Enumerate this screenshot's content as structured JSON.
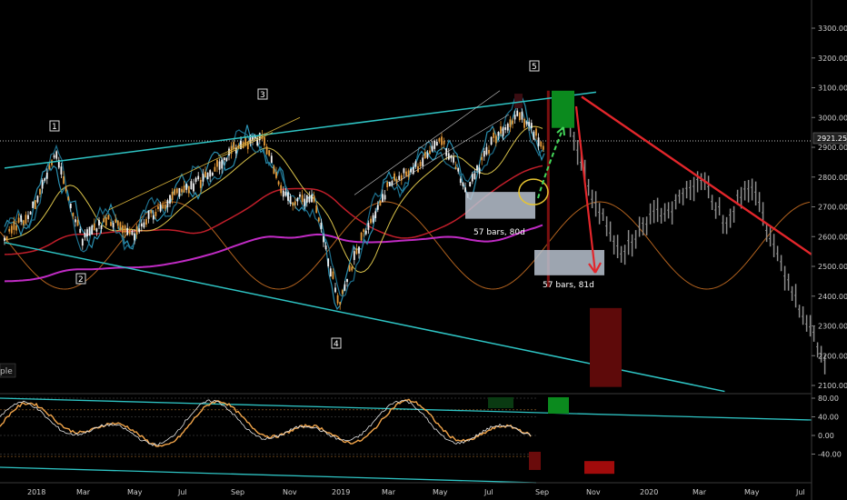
{
  "colors": {
    "background": "#000000",
    "trendline": "#2ec4c4",
    "projection": "#e3262b",
    "projection_candles": "#8d8d8d",
    "cycle": "#b0611e",
    "ma_magenta": "#c02bc4",
    "ma_red": "#c01e2a",
    "oscillator": "#f2a54a",
    "band_green": "#0e7a1f",
    "band_red": "#6a0b0b",
    "box": "#b8c2cf"
  },
  "main_axis": {
    "ticks": [
      "3300.00",
      "3200.00",
      "3100.00",
      "3000.00",
      "2900.00",
      "2800.00",
      "2700.00",
      "2600.00",
      "2500.00",
      "2400.00",
      "2300.00",
      "2200.00",
      "2100.00"
    ],
    "current_price": "2921.25"
  },
  "osc_axis": {
    "ticks": [
      "80.00",
      "40.00",
      "0.00",
      "-40.00"
    ]
  },
  "x_axis": {
    "ticks": [
      "2018",
      "Mar",
      "May",
      "Jul",
      "Sep",
      "Nov",
      "2019",
      "Mar",
      "May",
      "Jul",
      "Sep",
      "Nov",
      "2020",
      "Mar",
      "May",
      "Jul"
    ]
  },
  "waves": [
    "1",
    "2",
    "3",
    "4",
    "5"
  ],
  "annotations": {
    "measure_1": "57 bars, 80d",
    "measure_2": "57 bars, 81d",
    "cut_label": "ple"
  },
  "chart_data": {
    "type": "candlestick",
    "title": "",
    "x_range": [
      "2017-11",
      "2020-07"
    ],
    "y_range": [
      2060,
      3350
    ],
    "price_scale_ticks": [
      3300,
      3200,
      3100,
      3000,
      2900,
      2800,
      2700,
      2600,
      2500,
      2400,
      2300,
      2200,
      2100
    ],
    "current_price": 2921.25,
    "wave_points": [
      {
        "label": "1",
        "date": "2018-01",
        "price": 2870
      },
      {
        "label": "2",
        "date": "2018-04",
        "price": 2550
      },
      {
        "label": "3",
        "date": "2018-09",
        "price": 2940
      },
      {
        "label": "4",
        "date": "2018-12",
        "price": 2350
      },
      {
        "label": "5",
        "date": "2019-08",
        "price": 3030
      }
    ],
    "price_path": [
      {
        "date": "2017-11",
        "price": 2600
      },
      {
        "date": "2017-12",
        "price": 2680
      },
      {
        "date": "2018-01",
        "price": 2870
      },
      {
        "date": "2018-02",
        "price": 2590
      },
      {
        "date": "2018-03",
        "price": 2660
      },
      {
        "date": "2018-04",
        "price": 2600
      },
      {
        "date": "2018-05",
        "price": 2700
      },
      {
        "date": "2018-06",
        "price": 2760
      },
      {
        "date": "2018-07",
        "price": 2810
      },
      {
        "date": "2018-08",
        "price": 2900
      },
      {
        "date": "2018-09",
        "price": 2930
      },
      {
        "date": "2018-10",
        "price": 2720
      },
      {
        "date": "2018-11",
        "price": 2730
      },
      {
        "date": "2018-12",
        "price": 2380
      },
      {
        "date": "2019-01",
        "price": 2620
      },
      {
        "date": "2019-02",
        "price": 2780
      },
      {
        "date": "2019-03",
        "price": 2830
      },
      {
        "date": "2019-04",
        "price": 2930
      },
      {
        "date": "2019-05",
        "price": 2750
      },
      {
        "date": "2019-06",
        "price": 2930
      },
      {
        "date": "2019-07",
        "price": 3020
      },
      {
        "date": "2019-08",
        "price": 2900
      }
    ],
    "projection_path": [
      {
        "date": "2019-09",
        "price": 2950
      },
      {
        "date": "2019-10",
        "price": 2700
      },
      {
        "date": "2019-11",
        "price": 2550
      },
      {
        "date": "2019-12",
        "price": 2650
      },
      {
        "date": "2020-01",
        "price": 2700
      },
      {
        "date": "2020-02",
        "price": 2800
      },
      {
        "date": "2020-03",
        "price": 2650
      },
      {
        "date": "2020-04",
        "price": 2780
      },
      {
        "date": "2020-05",
        "price": 2550
      },
      {
        "date": "2020-06",
        "price": 2350
      },
      {
        "date": "2020-07",
        "price": 2150
      }
    ],
    "trendlines": [
      {
        "from": {
          "date": "2017-11",
          "price": 2830
        },
        "to": {
          "date": "2019-10",
          "price": 3085
        }
      },
      {
        "from": {
          "date": "2017-11",
          "price": 2580
        },
        "to": {
          "date": "2020-03",
          "price": 2080
        }
      }
    ],
    "projection_line": {
      "from": {
        "date": "2019-10",
        "price": 3070
      },
      "to": {
        "date": "2020-07",
        "price": 2540
      }
    },
    "measured_moves": [
      {
        "label": "57 bars, 80d",
        "from_price": 2750,
        "to_price": 2660
      },
      {
        "label": "57 bars, 81d",
        "from_price": 2555,
        "to_price": 2470
      }
    ],
    "oscillator": {
      "y_range": [
        -60,
        90
      ],
      "ticks": [
        80,
        40,
        0,
        -40
      ]
    }
  }
}
